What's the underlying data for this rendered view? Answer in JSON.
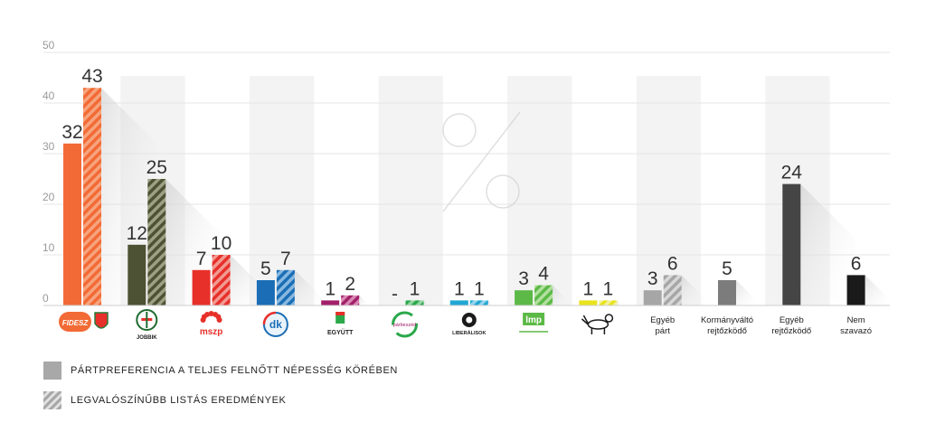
{
  "chart_data": {
    "type": "bar",
    "title": "",
    "xlabel": "",
    "ylabel": "",
    "ylim": [
      0,
      50
    ],
    "yticks": [
      "0",
      "10",
      "20",
      "30",
      "40",
      "50"
    ],
    "grid": true,
    "legend_placement": "bottom-left",
    "series": [
      {
        "name": "PÁRTPREFERENCIA A TELJES FELNŐTT NÉPESSÉG KÖRÉBEN",
        "pattern": "solid"
      },
      {
        "name": "LEGVALÓSZÍNŰBB LISTÁS EREDMÉNYEK",
        "pattern": "hatched"
      }
    ],
    "categories": [
      {
        "logo": "fidesz-kdnp-logo",
        "logo_text": "FIDESZ",
        "label": "",
        "pref": 32,
        "pref_label": "32",
        "list": 43,
        "list_label": "43",
        "color": "#f26a35",
        "color_light": "#f7a47e"
      },
      {
        "logo": "jobbik-logo",
        "logo_text": "JOBBIK",
        "label": "",
        "pref": 12,
        "pref_label": "12",
        "list": 25,
        "list_label": "25",
        "color": "#4e5234",
        "color_light": "#9ea084"
      },
      {
        "logo": "mszp-logo",
        "logo_text": "mszp",
        "label": "",
        "pref": 7,
        "pref_label": "7",
        "list": 10,
        "list_label": "10",
        "color": "#e7302a",
        "color_light": "#f19a92"
      },
      {
        "logo": "dk-logo",
        "logo_text": "dk",
        "label": "",
        "pref": 5,
        "pref_label": "5",
        "list": 7,
        "list_label": "7",
        "color": "#1b6eb5",
        "color_light": "#88b8e0"
      },
      {
        "logo": "egyutt-logo",
        "logo_text": "EGYÜTT",
        "label": "",
        "pref": 1,
        "pref_label": "1",
        "list": 2,
        "list_label": "2",
        "color": "#a3206a",
        "color_light": "#d98ab5"
      },
      {
        "logo": "parbeszed-logo",
        "logo_text": "párbeszéd",
        "label": "",
        "pref": null,
        "pref_label": "-",
        "list": 1,
        "list_label": "1",
        "color": "#2aa84a",
        "color_light": "#93d6a2"
      },
      {
        "logo": "liberalisok-logo",
        "logo_text": "LIBERÁLISOK",
        "label": "",
        "pref": 1,
        "pref_label": "1",
        "list": 1,
        "list_label": "1",
        "color": "#22a7d4",
        "color_light": "#93d5ec"
      },
      {
        "logo": "lmp-logo",
        "logo_text": "lmp",
        "label": "",
        "pref": 3,
        "pref_label": "3",
        "list": 4,
        "list_label": "4",
        "color": "#5cb947",
        "color_light": "#b2e09f"
      },
      {
        "logo": "ketfarku-kutya-logo",
        "logo_text": "",
        "label": "",
        "pref": 1,
        "pref_label": "1",
        "list": 1,
        "list_label": "1",
        "color": "#e8e31c",
        "color_light": "#f4f19b"
      },
      {
        "logo": "",
        "logo_text": "",
        "label": "Egyéb párt",
        "pref": 3,
        "pref_label": "3",
        "list": 6,
        "list_label": "6",
        "color": "#a6a6a6",
        "color_light": "#d8d8d8"
      },
      {
        "logo": "",
        "logo_text": "",
        "label": "Kormányváltó rejtőzködő",
        "pref": 5,
        "pref_label": "5",
        "list": null,
        "list_label": "",
        "color": "#7c7c7c",
        "color_light": "#bbbbbb"
      },
      {
        "logo": "",
        "logo_text": "",
        "label": "Egyéb rejtőzködő",
        "pref": 24,
        "pref_label": "24",
        "list": null,
        "list_label": "",
        "color": "#454545",
        "color_light": "#999999"
      },
      {
        "logo": "",
        "logo_text": "",
        "label": "Nem szavazó",
        "pref": 6,
        "pref_label": "6",
        "list": null,
        "list_label": "",
        "color": "#1a1a1a",
        "color_light": "#888888"
      }
    ]
  },
  "legend": {
    "solid_label": "PÁRTPREFERENCIA A TELJES FELNŐTT NÉPESSÉG KÖRÉBEN",
    "hatched_label": "LEGVALÓSZÍNŰBB LISTÁS EREDMÉNYEK"
  },
  "decor": {
    "watermark_icon": "percent-icon"
  }
}
